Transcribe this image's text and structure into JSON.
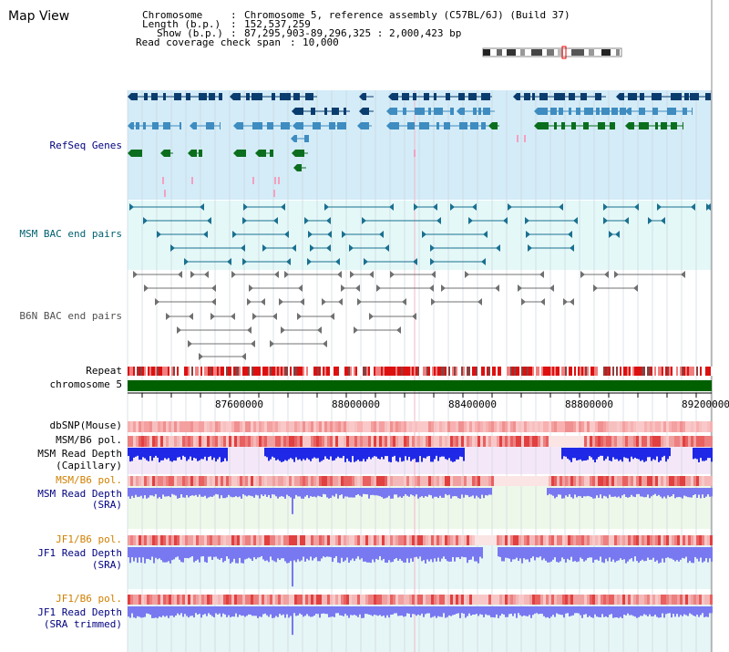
{
  "page_title": "Map View",
  "info": {
    "chromosome_key": "Chromosome",
    "chromosome_value": "Chromosome 5, reference assembly (C57BL/6J) (Build 37)",
    "length_key": "Length (b.p.)",
    "length_value": "152,537,259",
    "show_key": "Show (b.p.)",
    "show_value": "87,295,903-89,296,325 : 2,000,423 bp",
    "span_key": "Read coverage check span",
    "span_value": "10,000"
  },
  "tracks": {
    "refseq_genes": "RefSeq Genes",
    "msm_bac": "MSM BAC end pairs",
    "b6n_bac": "B6N BAC end pairs",
    "repeat": "Repeat",
    "chromosome": "chromosome 5",
    "dbsnp": "dbSNP(Mouse)",
    "msm_b6_pol_1": "MSM/B6 pol.",
    "msm_read_depth_cap_1": "MSM Read Depth",
    "msm_read_depth_cap_2": "(Capillary)",
    "msm_b6_pol_2": "MSM/B6 pol.",
    "msm_read_depth_sra_1": "MSM Read Depth",
    "msm_read_depth_sra_2": "(SRA)",
    "jf1_b6_pol_1": "JF1/B6 pol.",
    "jf1_read_depth_sra_1": "JF1 Read Depth",
    "jf1_read_depth_sra_2": "(SRA)",
    "jf1_b6_pol_2": "JF1/B6 pol.",
    "jf1_read_depth_trim_1": "JF1 Read Depth",
    "jf1_read_depth_trim_2": "(SRA trimmed)"
  },
  "ruler": {
    "ticks": [
      "87600000",
      "88000000",
      "88400000",
      "88800000",
      "89200000"
    ]
  },
  "colors": {
    "label_black": "#000000",
    "label_navy": "#000080",
    "label_teal": "#006070",
    "label_gray": "#505050",
    "label_orange": "#d08000",
    "refseq_bg": "#d4ecf8",
    "bac_bg": "#e4f8f8",
    "chromosome_bar": "#006000",
    "gene_dark": "#0a3c6e",
    "gene_mid": "#3e8cc0",
    "gene_green": "#0a6e1e",
    "depth_blue": "#1e28e6",
    "depth_light": "#7878f0"
  }
}
